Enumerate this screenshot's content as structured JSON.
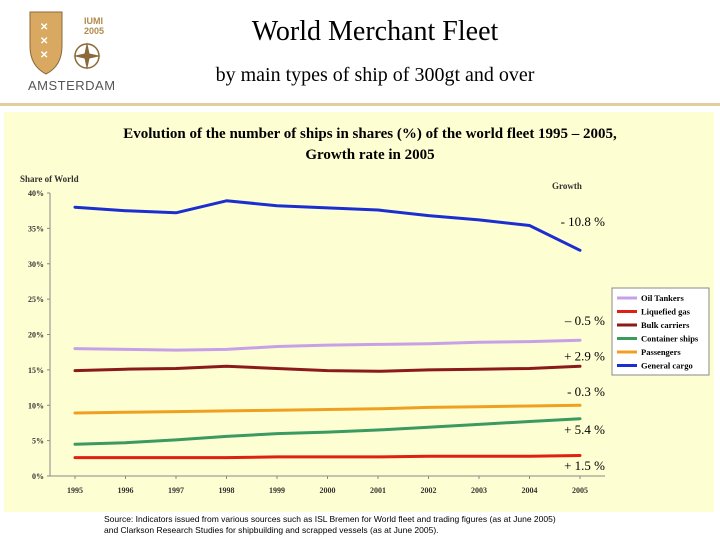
{
  "logo": {
    "line1": "IUMI",
    "line2": "2005",
    "city": "AMSTERDAM"
  },
  "header": {
    "title": "World Merchant Fleet",
    "subtitle": "by main types of ship of 300gt and over"
  },
  "chart_title": {
    "line1": "Evolution of the number of ships in shares (%) of the world fleet 1995 – 2005,",
    "line2": "Growth rate in 2005"
  },
  "source": {
    "line1": "Source: Indicators issued from various sources such as ISL Bremen for World fleet and trading figures (as at June 2005)",
    "line2": "and Clarkson Research Studies for shipbuilding and scrapped vessels (as at June 2005)."
  },
  "chart_data": {
    "type": "line",
    "title": "Evolution of the number of ships in shares (%) of the world fleet 1995 – 2005, Growth rate in 2005",
    "ylabel": "Share of World",
    "growth_label": "Growth",
    "ylim": [
      0,
      40
    ],
    "yticks": [
      "0%",
      "5%",
      "10%",
      "15%",
      "20%",
      "25%",
      "30%",
      "35%",
      "40%"
    ],
    "yticks_values": [
      0,
      5,
      10,
      15,
      20,
      25,
      30,
      35,
      40
    ],
    "x": [
      "1995",
      "1996",
      "1997",
      "1998",
      "1999",
      "2000",
      "2001",
      "2002",
      "2003",
      "2004",
      "2005"
    ],
    "series": [
      {
        "name": "Oil Tankers",
        "color": "#c8a0e8",
        "values": [
          18.0,
          17.9,
          17.8,
          17.9,
          18.3,
          18.5,
          18.6,
          18.7,
          18.9,
          19.0,
          19.2
        ],
        "growth": "– 0.5 %",
        "growth_at": 21.9
      },
      {
        "name": "Liquefied gas",
        "color": "#e02010",
        "values": [
          2.6,
          2.6,
          2.6,
          2.6,
          2.7,
          2.7,
          2.7,
          2.8,
          2.8,
          2.8,
          2.9
        ],
        "growth": "+ 1.5 %",
        "growth_at": 1.4
      },
      {
        "name": "Bulk carriers",
        "color": "#8b1a1a",
        "values": [
          14.9,
          15.1,
          15.2,
          15.5,
          15.2,
          14.9,
          14.8,
          15.0,
          15.1,
          15.2,
          15.5
        ],
        "growth": "+ 2.9 %",
        "growth_at": 16.9
      },
      {
        "name": "Container ships",
        "color": "#3a9a60",
        "values": [
          4.5,
          4.7,
          5.1,
          5.6,
          6.0,
          6.2,
          6.5,
          6.9,
          7.3,
          7.7,
          8.1
        ],
        "growth": "+ 5.4 %",
        "growth_at": 6.5
      },
      {
        "name": "Passengers",
        "color": "#f0a020",
        "values": [
          8.9,
          9.0,
          9.1,
          9.2,
          9.3,
          9.4,
          9.5,
          9.7,
          9.8,
          9.9,
          10.0
        ],
        "growth": "- 0.3 %",
        "growth_at": 11.9
      },
      {
        "name": "General cargo",
        "color": "#1c2ed0",
        "values": [
          38.0,
          37.5,
          37.2,
          38.9,
          38.2,
          37.9,
          37.6,
          36.8,
          36.2,
          35.4,
          31.9
        ],
        "growth": "- 10.8 %",
        "growth_at": 35.9
      }
    ],
    "legend": "right"
  }
}
